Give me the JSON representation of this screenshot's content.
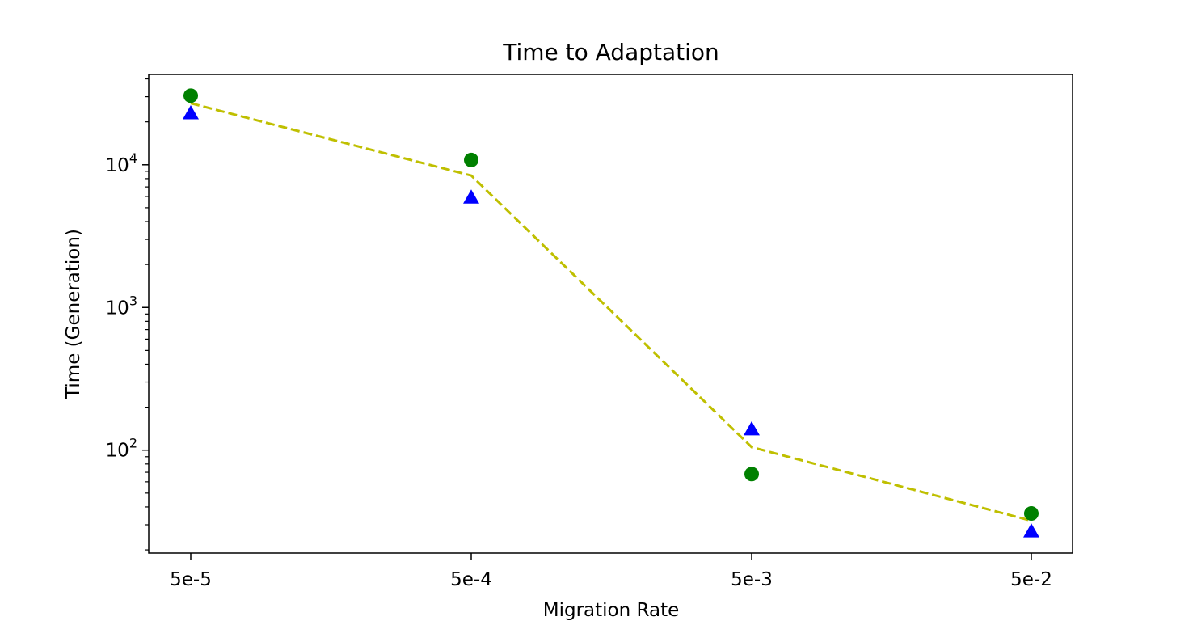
{
  "chart_data": {
    "type": "scatter",
    "title": "Time to Adaptation",
    "xlabel": "Migration Rate",
    "ylabel": "Time (Generation)",
    "categories": [
      "5e-5",
      "5e-4",
      "5e-3",
      "5e-2"
    ],
    "y_scale": "log",
    "ylim": [
      19,
      43000
    ],
    "y_major_ticks": [
      {
        "value": 100,
        "base": "10",
        "exp": "2"
      },
      {
        "value": 1000,
        "base": "10",
        "exp": "3"
      },
      {
        "value": 10000,
        "base": "10",
        "exp": "4"
      }
    ],
    "grid": false,
    "series": [
      {
        "marker": "circle",
        "color": "#008000",
        "values": [
          30500,
          10800,
          68,
          36
        ]
      },
      {
        "marker": "triangle",
        "color": "#0000ff",
        "values": [
          23000,
          5900,
          140,
          27
        ]
      },
      {
        "marker": "dashed-line",
        "color": "#bfbf00",
        "values": [
          27000,
          8400,
          105,
          32
        ]
      }
    ]
  }
}
